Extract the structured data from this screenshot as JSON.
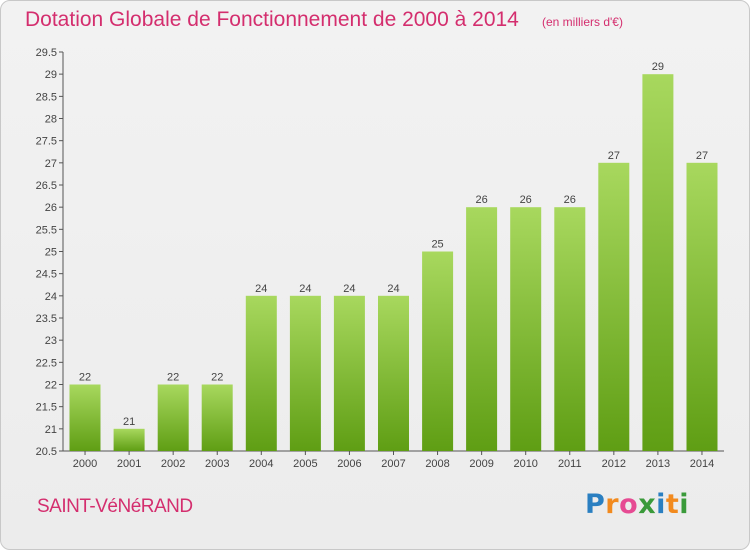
{
  "header": {
    "title": "Dotation Globale de Fonctionnement de 2000 à 2014",
    "subtitle": "(en milliers d'€)"
  },
  "footer": {
    "commune": "SAINT-VéNéRAND",
    "logo_letters": [
      "P",
      "r",
      "o",
      "x",
      "i",
      "t",
      "i"
    ],
    "logo_colors": [
      "#2a7fc1",
      "#f28a1e",
      "#e64b93",
      "#3a9a3a",
      "#2a7fc1",
      "#f28a1e",
      "#3a9a3a"
    ]
  },
  "colors": {
    "bar_light": "#a8d85e",
    "bar_dark": "#5f9e14",
    "accent": "#d42e6e"
  },
  "chart_data": {
    "type": "bar",
    "categories": [
      "2000",
      "2001",
      "2002",
      "2003",
      "2004",
      "2005",
      "2006",
      "2007",
      "2008",
      "2009",
      "2010",
      "2011",
      "2012",
      "2013",
      "2014"
    ],
    "values": [
      22,
      21,
      22,
      22,
      24,
      24,
      24,
      24,
      25,
      26,
      26,
      26,
      27,
      29,
      27
    ],
    "data_labels": [
      "22",
      "21",
      "22",
      "22",
      "24",
      "24",
      "24",
      "24",
      "25",
      "26",
      "26",
      "26",
      "27",
      "29",
      "27"
    ],
    "title": "Dotation Globale de Fonctionnement de 2000 à 2014",
    "ylim": [
      20.5,
      29.5
    ],
    "yticks": [
      "20.5",
      "21",
      "21.5",
      "22",
      "22.5",
      "23",
      "23.5",
      "24",
      "24.5",
      "25",
      "25.5",
      "26",
      "26.5",
      "27",
      "27.5",
      "28",
      "28.5",
      "29",
      "29.5"
    ],
    "grid": false
  }
}
